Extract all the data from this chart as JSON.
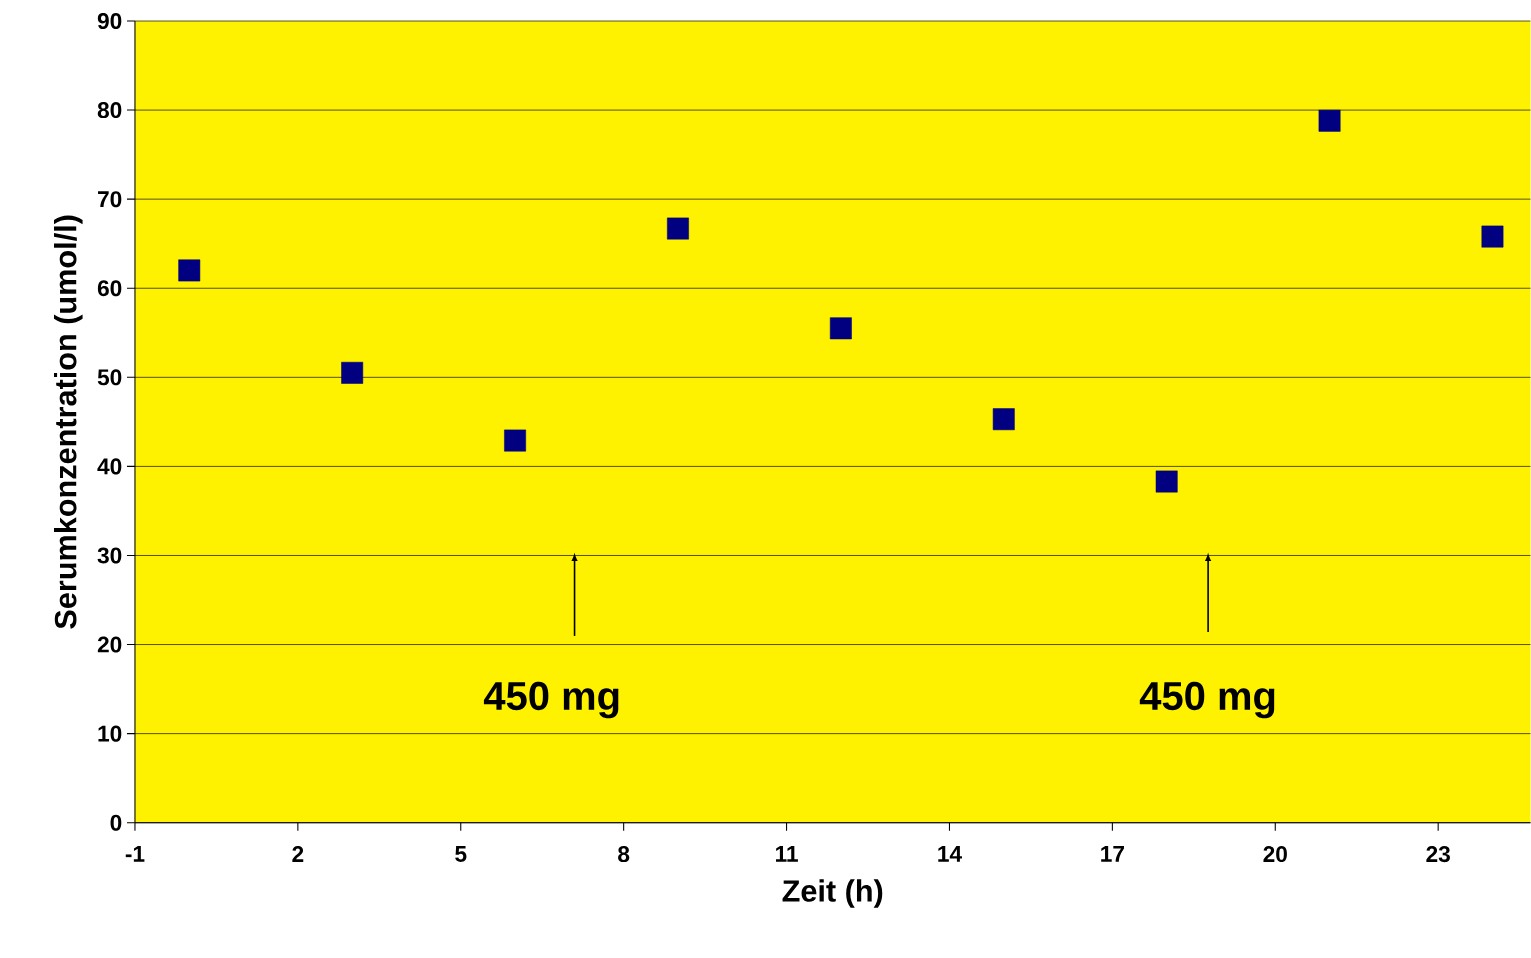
{
  "chart_data": {
    "type": "scatter",
    "xlabel": "Zeit (h)",
    "ylabel": "Serumkonzentration (umol/l)",
    "x": [
      0,
      3,
      6,
      9,
      12,
      15,
      18,
      21,
      24
    ],
    "values": [
      62,
      50.5,
      42.9,
      66.7,
      55.5,
      45.3,
      38.3,
      78.8,
      65.8
    ],
    "color": "#000080",
    "marker": "square",
    "xlim": [
      -1,
      24.7
    ],
    "xticks": [
      -1,
      2,
      5,
      8,
      11,
      14,
      17,
      20,
      23
    ],
    "ylim": [
      0,
      90
    ],
    "yticks": [
      0,
      10,
      20,
      30,
      40,
      50,
      60,
      70,
      80,
      90
    ],
    "grid": "y",
    "annotations": [
      "450 mg",
      "450 mg"
    ]
  }
}
